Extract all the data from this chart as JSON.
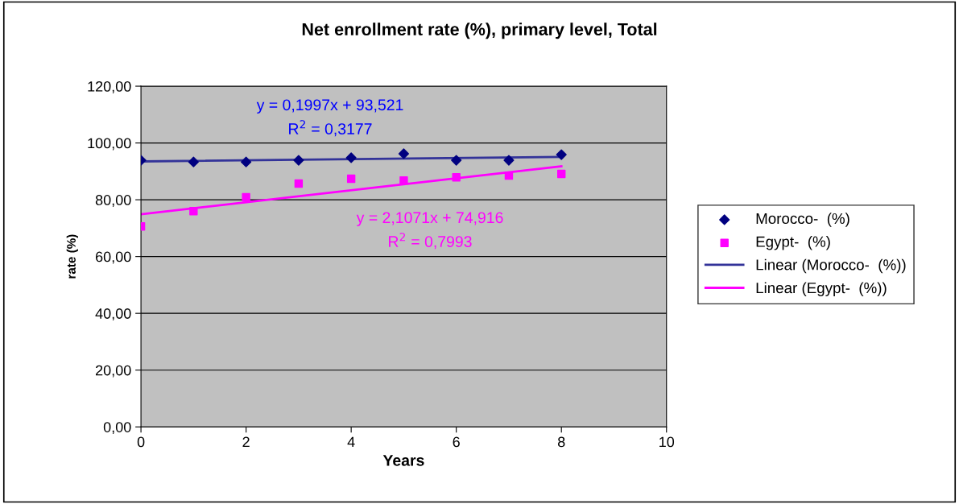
{
  "chart_data": {
    "type": "scatter",
    "title": "Net enrollment rate (%), primary level, Total",
    "xlabel": "Years",
    "ylabel": "rate (%)",
    "series": [
      {
        "name": "Morocco-  (%)",
        "marker": "diamond",
        "color": "#000080",
        "x": [
          0,
          1,
          2,
          3,
          4,
          5,
          6,
          7,
          8
        ],
        "values": [
          93.9,
          93.3,
          93.3,
          93.9,
          94.8,
          96.2,
          93.9,
          93.9,
          95.9
        ]
      },
      {
        "name": "Egypt-  (%)",
        "marker": "square",
        "color": "#ff00ff",
        "x": [
          0,
          1,
          2,
          3,
          4,
          5,
          6,
          7,
          8
        ],
        "values": [
          70.6,
          76.0,
          80.9,
          85.7,
          87.4,
          86.8,
          87.9,
          88.5,
          89.1
        ]
      },
      {
        "name": "Linear (Morocco-  (%))",
        "type": "line",
        "marker": "none",
        "color": "#333399",
        "x": [
          0,
          8
        ],
        "values": [
          93.5,
          95.1
        ]
      },
      {
        "name": "Linear (Egypt-  (%))",
        "type": "line",
        "marker": "none",
        "color": "#ff00ff",
        "x": [
          0,
          8
        ],
        "values": [
          74.9,
          91.8
        ]
      }
    ],
    "annotations": [
      {
        "text": "y = 0,1997x + 93,521\nR$^{2}$ = 0,3177",
        "x": 3.6,
        "y": 94.2
      },
      {
        "text": "y = 2,1071x + 74,916\nR$^{2}$ = 0,7993",
        "x": 5.5,
        "y": 86.5
      }
    ],
    "xlim": [
      0,
      10
    ],
    "xticks": [
      0,
      2,
      4,
      6,
      8,
      10
    ],
    "ylim": [
      0,
      120
    ],
    "yticks": [
      {
        "value": 0,
        "label": "0,00"
      },
      {
        "value": 20,
        "label": "20,00"
      },
      {
        "value": 40,
        "label": "40,00"
      },
      {
        "value": 60,
        "label": "60,00"
      },
      {
        "value": 80,
        "label": "80,00"
      },
      {
        "value": 100,
        "label": "100,00"
      },
      {
        "value": 120,
        "label": "120,00"
      }
    ],
    "grid": "y",
    "legend": "right",
    "line_style": "solid"
  }
}
